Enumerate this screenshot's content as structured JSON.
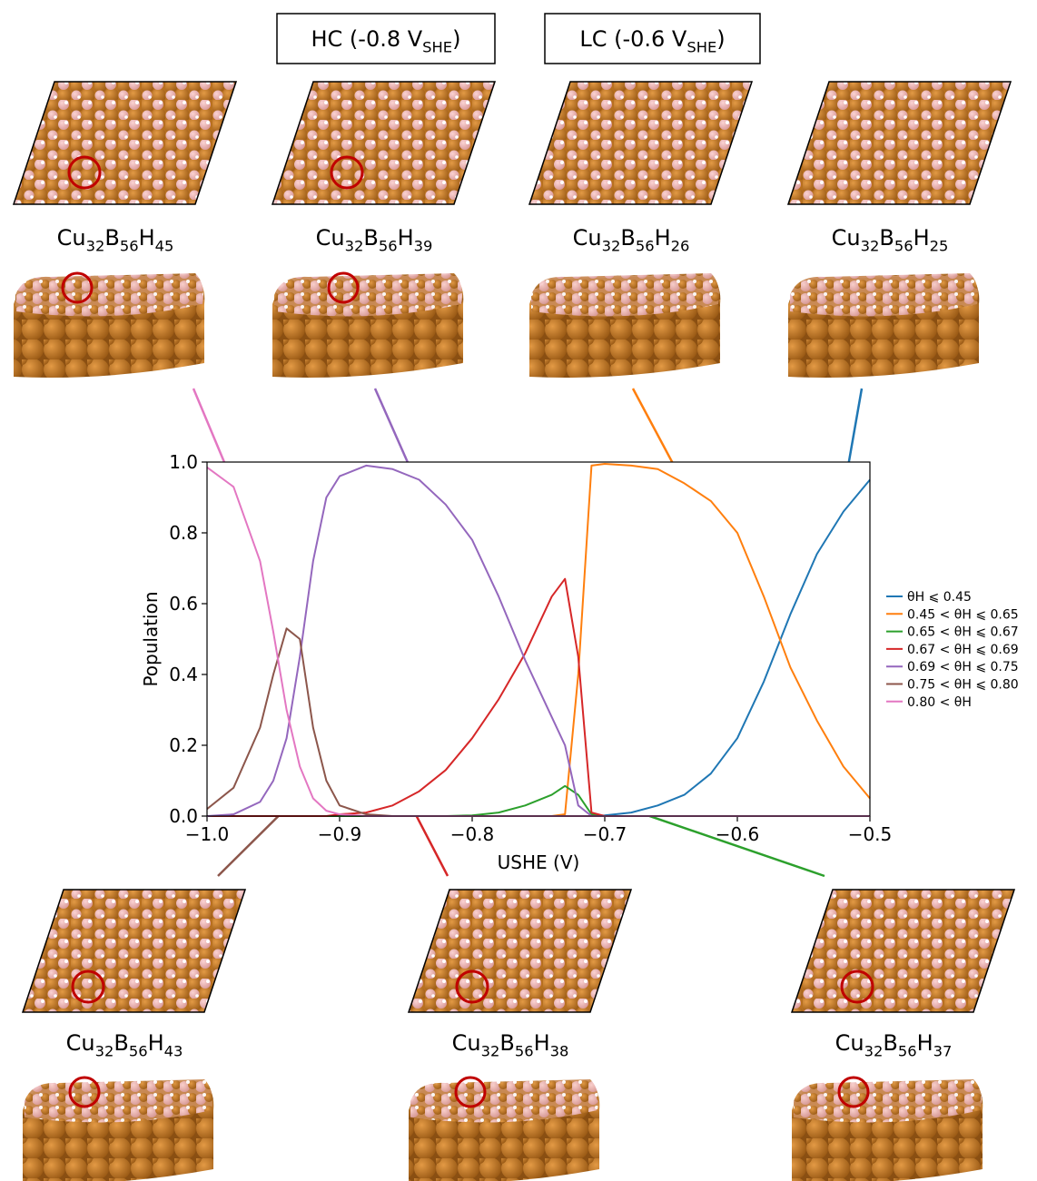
{
  "chart_data": {
    "type": "line",
    "x_label": "USHE (V)",
    "y_label": "Population",
    "x": [
      -1.0,
      -0.98,
      -0.96,
      -0.95,
      -0.94,
      -0.93,
      -0.92,
      -0.91,
      -0.9,
      -0.88,
      -0.86,
      -0.84,
      -0.82,
      -0.8,
      -0.78,
      -0.76,
      -0.74,
      -0.73,
      -0.72,
      -0.71,
      -0.7,
      -0.68,
      -0.66,
      -0.64,
      -0.62,
      -0.6,
      -0.58,
      -0.56,
      -0.54,
      -0.52,
      -0.5
    ],
    "series": [
      {
        "name": "θH ⩽ 0.45",
        "color": "#1f77b4",
        "values": [
          0,
          0,
          0,
          0,
          0,
          0,
          0,
          0,
          0,
          0,
          0,
          0,
          0,
          0,
          0,
          0,
          0,
          0,
          0,
          0,
          0.002,
          0.01,
          0.03,
          0.06,
          0.12,
          0.22,
          0.38,
          0.57,
          0.74,
          0.86,
          0.95
        ]
      },
      {
        "name": "0.45 < θH ⩽ 0.65",
        "color": "#ff7f0e",
        "values": [
          0,
          0,
          0,
          0,
          0,
          0,
          0,
          0,
          0,
          0,
          0,
          0,
          0,
          0,
          0,
          0,
          0,
          0.005,
          0.4,
          0.99,
          0.995,
          0.99,
          0.98,
          0.94,
          0.89,
          0.8,
          0.62,
          0.42,
          0.27,
          0.14,
          0.05
        ]
      },
      {
        "name": "0.65 < θH ⩽ 0.67",
        "color": "#2ca02c",
        "values": [
          0,
          0,
          0,
          0,
          0,
          0,
          0,
          0,
          0,
          0,
          0,
          0,
          0,
          0.002,
          0.01,
          0.03,
          0.06,
          0.085,
          0.06,
          0.005,
          0,
          0,
          0,
          0,
          0,
          0,
          0,
          0,
          0,
          0,
          0
        ]
      },
      {
        "name": "0.67 < θH ⩽ 0.69",
        "color": "#d62728",
        "values": [
          0,
          0,
          0,
          0,
          0,
          0,
          0,
          0,
          0.005,
          0.01,
          0.03,
          0.07,
          0.13,
          0.22,
          0.33,
          0.46,
          0.62,
          0.67,
          0.45,
          0.01,
          0,
          0,
          0,
          0,
          0,
          0,
          0,
          0,
          0,
          0,
          0
        ]
      },
      {
        "name": "0.69 < θH ⩽ 0.75",
        "color": "#9467bd",
        "values": [
          0,
          0.005,
          0.04,
          0.1,
          0.22,
          0.45,
          0.72,
          0.9,
          0.96,
          0.99,
          0.98,
          0.95,
          0.88,
          0.78,
          0.62,
          0.44,
          0.28,
          0.2,
          0.03,
          0,
          0,
          0,
          0,
          0,
          0,
          0,
          0,
          0,
          0,
          0,
          0
        ]
      },
      {
        "name": "0.75 < θH ⩽ 0.80",
        "color": "#8c564b",
        "values": [
          0.02,
          0.08,
          0.25,
          0.4,
          0.53,
          0.5,
          0.25,
          0.1,
          0.03,
          0.005,
          0,
          0,
          0,
          0,
          0,
          0,
          0,
          0,
          0,
          0,
          0,
          0,
          0,
          0,
          0,
          0,
          0,
          0,
          0,
          0,
          0
        ]
      },
      {
        "name": "0.80 < θH",
        "color": "#e377c2",
        "values": [
          0.985,
          0.93,
          0.72,
          0.52,
          0.3,
          0.14,
          0.05,
          0.015,
          0.005,
          0,
          0,
          0,
          0,
          0,
          0,
          0,
          0,
          0,
          0,
          0,
          0,
          0,
          0,
          0,
          0,
          0,
          0,
          0,
          0,
          0,
          0
        ]
      }
    ],
    "xlim": [
      -1.0,
      -0.5
    ],
    "xticks": [
      {
        "value": -1.0,
        "label": "−1.0"
      },
      {
        "value": -0.9,
        "label": "−0.9"
      },
      {
        "value": -0.8,
        "label": "−0.8"
      },
      {
        "value": -0.7,
        "label": "−0.7"
      },
      {
        "value": -0.6,
        "label": "−0.6"
      },
      {
        "value": -0.5,
        "label": "−0.5"
      }
    ],
    "ylim": [
      0,
      1.0
    ],
    "yticks": [
      {
        "value": 0,
        "label": "0.0"
      },
      0.2,
      0.4,
      0.6,
      0.8,
      {
        "value": 1.0,
        "label": "1.0"
      }
    ],
    "legend": "right"
  },
  "conditions": [
    [
      "HC (-0.8 V",
      "SHE",
      ")"
    ],
    [
      "LC (-0.6 V",
      "SHE",
      ")"
    ]
  ],
  "structures": [
    [
      "Cu",
      "32",
      "B",
      "56",
      "H",
      "45"
    ],
    [
      "Cu",
      "32",
      "B",
      "56",
      "H",
      "39"
    ],
    [
      "Cu",
      "32",
      "B",
      "56",
      "H",
      "26"
    ],
    [
      "Cu",
      "32",
      "B",
      "56",
      "H",
      "25"
    ],
    [
      "Cu",
      "32",
      "B",
      "56",
      "H",
      "43"
    ],
    [
      "Cu",
      "32",
      "B",
      "56",
      "H",
      "38"
    ],
    [
      "Cu",
      "32",
      "B",
      "56",
      "H",
      "37"
    ]
  ]
}
